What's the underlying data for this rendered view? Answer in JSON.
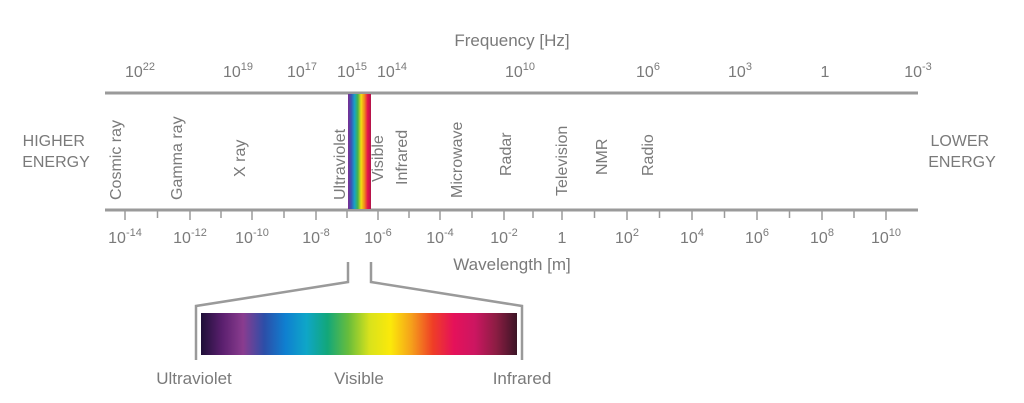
{
  "frequency_axis": {
    "title": "Frequency [Hz]",
    "ticks": [
      {
        "base": "10",
        "exp": "22"
      },
      {
        "base": "10",
        "exp": "19"
      },
      {
        "base": "10",
        "exp": "17"
      },
      {
        "base": "10",
        "exp": "15"
      },
      {
        "base": "10",
        "exp": "14"
      },
      {
        "base": "10",
        "exp": "10"
      },
      {
        "base": "10",
        "exp": "6"
      },
      {
        "base": "10",
        "exp": "3"
      },
      {
        "base": "1",
        "exp": ""
      },
      {
        "base": "10",
        "exp": "-3"
      }
    ]
  },
  "wavelength_axis": {
    "title": "Wavelength [m]",
    "ticks": [
      {
        "base": "10",
        "exp": "-14"
      },
      {
        "base": "10",
        "exp": "-12"
      },
      {
        "base": "10",
        "exp": "-10"
      },
      {
        "base": "10",
        "exp": "-8"
      },
      {
        "base": "10",
        "exp": "-6"
      },
      {
        "base": "10",
        "exp": "-4"
      },
      {
        "base": "10",
        "exp": "-2"
      },
      {
        "base": "1",
        "exp": ""
      },
      {
        "base": "10",
        "exp": "2"
      },
      {
        "base": "10",
        "exp": "4"
      },
      {
        "base": "10",
        "exp": "6"
      },
      {
        "base": "10",
        "exp": "8"
      },
      {
        "base": "10",
        "exp": "10"
      }
    ]
  },
  "energy": {
    "higher": [
      "HIGHER",
      "ENERGY"
    ],
    "lower": [
      "LOWER",
      "ENERGY"
    ]
  },
  "bands": [
    "Cosmic ray",
    "Gamma ray",
    "X ray",
    "Ultraviolet",
    "Visible",
    "Infrared",
    "Microwave",
    "Radar",
    "Television",
    "NMR",
    "Radio"
  ],
  "zoom": {
    "labels": [
      "Ultraviolet",
      "Visible",
      "Infrared"
    ]
  },
  "colors": {
    "axis_line": "#9a9a9a",
    "text": "#7a7a7a",
    "spectrum": [
      "#1e0f38",
      "#5a1f6e",
      "#8a3c8f",
      "#2c4ea8",
      "#0f7fd0",
      "#0fa6c8",
      "#12a77a",
      "#68bd3b",
      "#d9e21c",
      "#fbe90a",
      "#f59f1b",
      "#ef3e26",
      "#e5115a",
      "#cc1661",
      "#8c1d43",
      "#3c1526"
    ],
    "strip": [
      "#7d2b90",
      "#3b55b5",
      "#16a2c8",
      "#46b34a",
      "#f2dd12",
      "#f08a1d",
      "#e5114c",
      "#b0144a"
    ]
  }
}
